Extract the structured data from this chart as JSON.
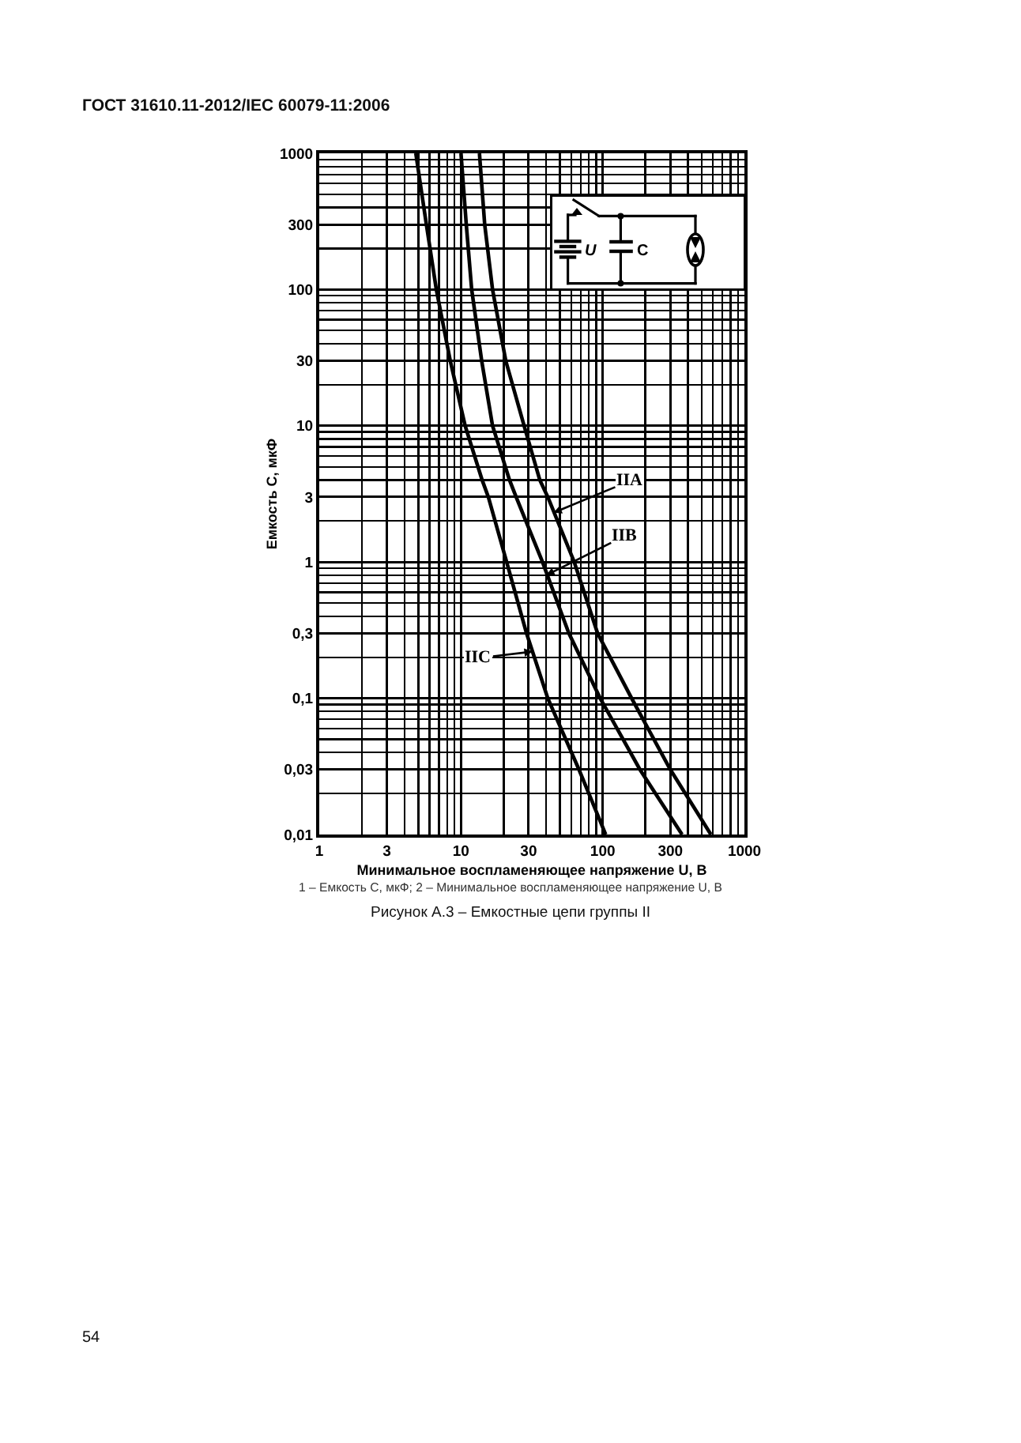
{
  "chart_data": {
    "type": "line",
    "title": "Рисунок А.3 – Емкостные цепи группы II",
    "xlabel": "Минимальное воспламеняющее напряжение U, В",
    "ylabel": "Емкость C, мкФ",
    "log": "xy",
    "grid": true,
    "line_style": "solid",
    "xlim": [
      1,
      1000
    ],
    "xticks": [
      1,
      3,
      10,
      30,
      100,
      300,
      1000
    ],
    "ylim": [
      0.01,
      1000
    ],
    "yticks": [
      1000,
      300,
      100,
      30,
      10,
      3,
      1,
      {
        "value": 0.3,
        "label": "0,3"
      },
      {
        "value": 0.1,
        "label": "0,1"
      },
      {
        "value": 0.03,
        "label": "0,03"
      },
      {
        "value": 0.01,
        "label": "0,01"
      }
    ],
    "series": [
      {
        "color": "#000000",
        "x": [
          13.5,
          14.7,
          16.7,
          20.7,
          27.9,
          36,
          41,
          63,
          92,
          160,
          300,
          580
        ],
        "values": [
          1000,
          300,
          100,
          30,
          10,
          4,
          3,
          1,
          0.3,
          0.1,
          0.03,
          0.01
        ]
      },
      {
        "color": "#000000",
        "x": [
          10,
          10.9,
          11.9,
          14,
          16.7,
          22,
          24.5,
          37.6,
          57.7,
          96,
          183,
          363
        ],
        "values": [
          1000,
          300,
          100,
          30,
          10,
          4,
          3,
          1,
          0.3,
          0.1,
          0.03,
          0.01
        ]
      },
      {
        "color": "#000000",
        "x": [
          4.8,
          5.7,
          6.7,
          8.4,
          10.7,
          14.1,
          15.6,
          21,
          29,
          41,
          68,
          105
        ],
        "values": [
          1000,
          300,
          100,
          30,
          10,
          4,
          3,
          1,
          0.3,
          0.1,
          0.03,
          0.01
        ]
      }
    ],
    "annotations": [
      "ГОСТ 31610.11-2012/IEC 60079-11:2006",
      {
        "text": "IIA",
        "x": 45,
        "y": 2.3
      },
      {
        "text": "IIB",
        "x": 40,
        "y": 0.8
      },
      {
        "text": "IIC",
        "x": 32,
        "y": 0.22
      },
      "U",
      "C",
      "1 – Емкость C, мкФ; 2 – Минимальное воспламеняющее напряжение U, В",
      "54"
    ]
  }
}
